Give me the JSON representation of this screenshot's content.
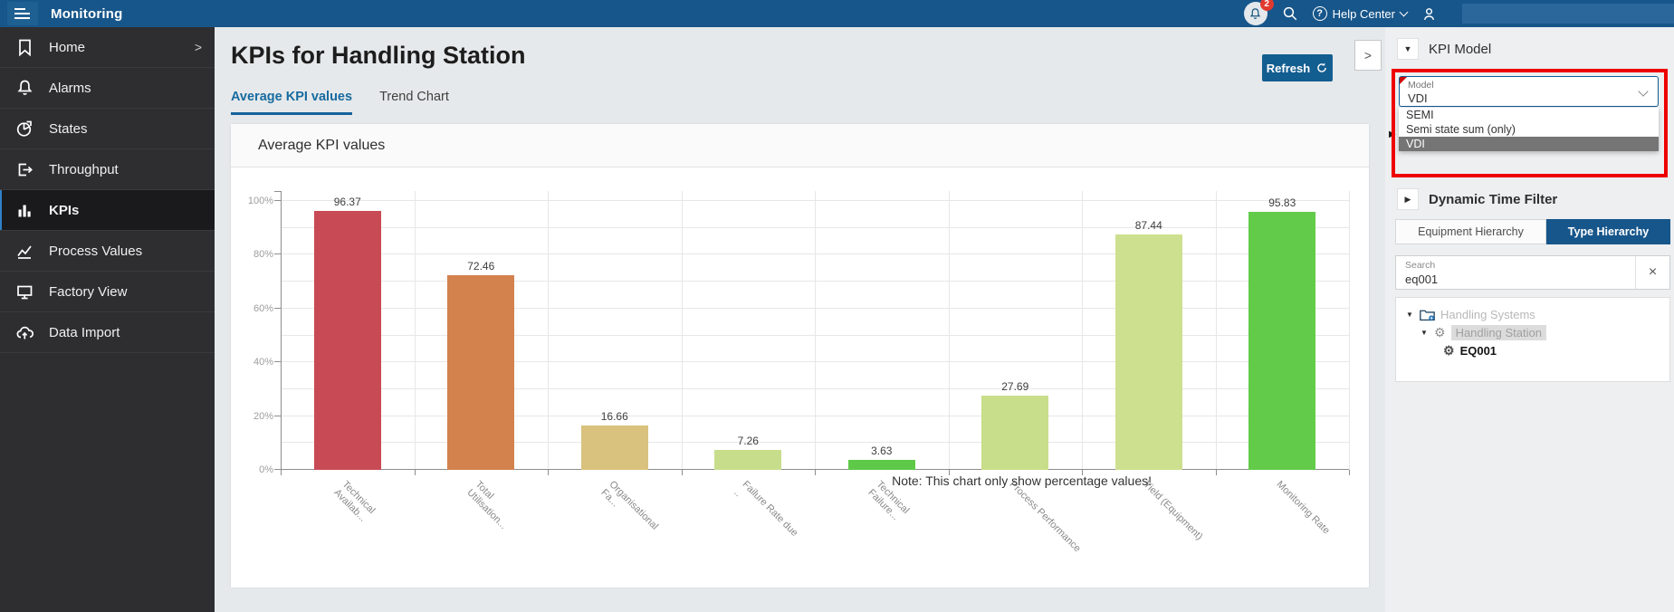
{
  "header": {
    "app_title": "Monitoring",
    "notification_count": "2",
    "help_center_label": "Help Center"
  },
  "sidebar": {
    "items": [
      {
        "label": "Home",
        "icon": "bookmark-icon",
        "has_submenu": true
      },
      {
        "label": "Alarms",
        "icon": "bell-icon"
      },
      {
        "label": "States",
        "icon": "pie-chart-icon"
      },
      {
        "label": "Throughput",
        "icon": "box-arrow-icon"
      },
      {
        "label": "KPIs",
        "icon": "bar-chart-icon",
        "active": true
      },
      {
        "label": "Process Values",
        "icon": "line-chart-icon"
      },
      {
        "label": "Factory View",
        "icon": "monitor-icon"
      },
      {
        "label": "Data Import",
        "icon": "cloud-upload-icon"
      }
    ]
  },
  "page": {
    "title": "KPIs for Handling Station",
    "refresh_label": "Refresh"
  },
  "tabs": [
    {
      "label": "Average KPI values",
      "active": true
    },
    {
      "label": "Trend Chart",
      "active": false
    }
  ],
  "panel": {
    "title": "Average KPI values"
  },
  "chart_data": {
    "type": "bar",
    "title": "Average KPI values",
    "categories": [
      "Technical Availab...",
      "Total Utilisation...",
      "Organisational Fa...",
      "Failure Rate due ..",
      "Technical Failure...",
      "Process Performance",
      "Yield (Equipment)",
      "Monitoring Rate"
    ],
    "category_lines": [
      [
        "Technical",
        "Availab..."
      ],
      [
        "Total",
        "Utilisation..."
      ],
      [
        "Organisational",
        "Fa..."
      ],
      [
        "Failure Rate due",
        ".."
      ],
      [
        "Technical",
        "Failure..."
      ],
      [
        "Process Performance"
      ],
      [
        "Yield (Equipment)"
      ],
      [
        "Monitoring Rate"
      ]
    ],
    "values": [
      96.37,
      72.46,
      16.66,
      7.26,
      3.63,
      27.69,
      87.44,
      95.83
    ],
    "bar_colors": [
      "#c84a55",
      "#d3814d",
      "#d9c27e",
      "#c8dd8b",
      "#5ec948",
      "#c9de8a",
      "#cde08f",
      "#62cb49"
    ],
    "xlabel": "",
    "ylabel": "",
    "ytick_labels": [
      "0%",
      "20%",
      "40%",
      "60%",
      "80%",
      "100%"
    ],
    "ylim": [
      0,
      110
    ],
    "grid": true,
    "legend": "none",
    "value_labels_shown": true,
    "note": "Note: This chart only show percentage values!"
  },
  "right_panel": {
    "kpi_model_label": "KPI Model",
    "model_field": {
      "label": "Model",
      "value": "VDI"
    },
    "dropdown_options": [
      "SEMI",
      "Semi state sum (only)",
      "VDI"
    ],
    "dropdown_selected_index": 2,
    "dynamic_time_filter_label": "Dynamic Time Filter",
    "hierarchy_tabs": {
      "equipment": "Equipment Hierarchy",
      "type": "Type Hierarchy"
    },
    "active_hierarchy_tab": "Type Hierarchy",
    "search": {
      "label": "Search",
      "value": "eq001"
    },
    "tree": [
      {
        "label": "Handling Systems",
        "level": 0
      },
      {
        "label": "Handling Station",
        "level": 1
      },
      {
        "label": "EQ001",
        "level": 2
      }
    ]
  },
  "icons": {
    "close": "×",
    "collapse_chevron": ">",
    "tree_expanded": "▼",
    "section_collapsed": "▶",
    "section_expanded": "▼",
    "gear": "⚙"
  },
  "colors": {
    "header_blue": "#17568a",
    "accent_blue": "#17639c",
    "badge_red": "#e0392f",
    "callout_red": "#ee0000",
    "selected_option_gray": "#757575"
  }
}
